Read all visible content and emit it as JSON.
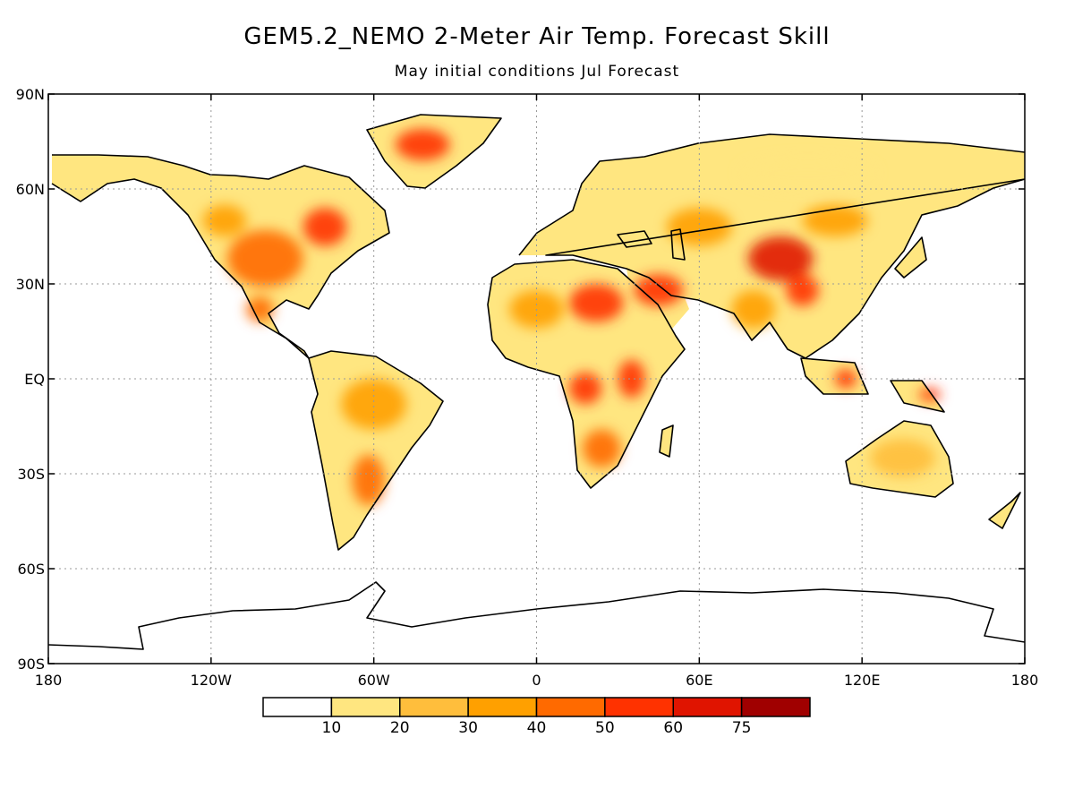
{
  "title": "GEM5.2_NEMO 2-Meter Air Temp. Forecast Skill",
  "subtitle": "May initial conditions   Jul Forecast",
  "map": {
    "projection": "equirectangular",
    "lon_range": [
      -180,
      180
    ],
    "lat_range": [
      -90,
      90
    ],
    "grid": true,
    "lat_ticks": [
      {
        "lat": 90,
        "label": "90N"
      },
      {
        "lat": 60,
        "label": "60N"
      },
      {
        "lat": 30,
        "label": "30N"
      },
      {
        "lat": 0,
        "label": "EQ"
      },
      {
        "lat": -30,
        "label": "30S"
      },
      {
        "lat": -60,
        "label": "60S"
      },
      {
        "lat": -90,
        "label": "90S"
      }
    ],
    "lon_ticks": [
      {
        "lon": -180,
        "label": "180"
      },
      {
        "lon": -120,
        "label": "120W"
      },
      {
        "lon": -60,
        "label": "60W"
      },
      {
        "lon": 0,
        "label": "0"
      },
      {
        "lon": 60,
        "label": "60E"
      },
      {
        "lon": 120,
        "label": "120E"
      },
      {
        "lon": 180,
        "label": "180"
      }
    ]
  },
  "colorbar": {
    "colors": [
      "#ffffff",
      "#ffe680",
      "#ffbe3c",
      "#ffa000",
      "#ff6a00",
      "#ff3200",
      "#e01400",
      "#a00000"
    ],
    "labels": [
      "10",
      "20",
      "30",
      "40",
      "50",
      "60",
      "75"
    ]
  },
  "regions": [
    {
      "lon": -100,
      "lat": 38,
      "rx": 14,
      "ry": 9,
      "level": 4
    },
    {
      "lon": -78,
      "lat": 48,
      "rx": 8,
      "ry": 6,
      "level": 5
    },
    {
      "lon": -115,
      "lat": 50,
      "rx": 8,
      "ry": 5,
      "level": 3
    },
    {
      "lon": -102,
      "lat": 22,
      "rx": 5,
      "ry": 4,
      "level": 4
    },
    {
      "lon": -42,
      "lat": 74,
      "rx": 10,
      "ry": 5,
      "level": 5
    },
    {
      "lon": -60,
      "lat": -8,
      "rx": 12,
      "ry": 8,
      "level": 3
    },
    {
      "lon": -62,
      "lat": -32,
      "rx": 6,
      "ry": 8,
      "level": 4
    },
    {
      "lon": 22,
      "lat": 24,
      "rx": 10,
      "ry": 6,
      "level": 5
    },
    {
      "lon": 0,
      "lat": 22,
      "rx": 10,
      "ry": 6,
      "level": 3
    },
    {
      "lon": 18,
      "lat": -3,
      "rx": 6,
      "ry": 5,
      "level": 5
    },
    {
      "lon": 35,
      "lat": 0,
      "rx": 5,
      "ry": 6,
      "level": 5
    },
    {
      "lon": 24,
      "lat": -22,
      "rx": 7,
      "ry": 6,
      "level": 4
    },
    {
      "lon": 45,
      "lat": 28,
      "rx": 9,
      "ry": 5,
      "level": 5
    },
    {
      "lon": 60,
      "lat": 48,
      "rx": 12,
      "ry": 6,
      "level": 3
    },
    {
      "lon": 90,
      "lat": 38,
      "rx": 12,
      "ry": 7,
      "level": 6
    },
    {
      "lon": 98,
      "lat": 28,
      "rx": 6,
      "ry": 5,
      "level": 5
    },
    {
      "lon": 80,
      "lat": 22,
      "rx": 8,
      "ry": 6,
      "level": 3
    },
    {
      "lon": 110,
      "lat": 50,
      "rx": 12,
      "ry": 5,
      "level": 3
    },
    {
      "lon": 100,
      "lat": 65,
      "rx": 25,
      "ry": 5,
      "level": 1
    },
    {
      "lon": 135,
      "lat": -25,
      "rx": 12,
      "ry": 6,
      "level": 2
    },
    {
      "lon": 145,
      "lat": -5,
      "rx": 4,
      "ry": 2,
      "level": 5
    },
    {
      "lon": 114,
      "lat": 0,
      "rx": 4,
      "ry": 3,
      "level": 5
    }
  ]
}
